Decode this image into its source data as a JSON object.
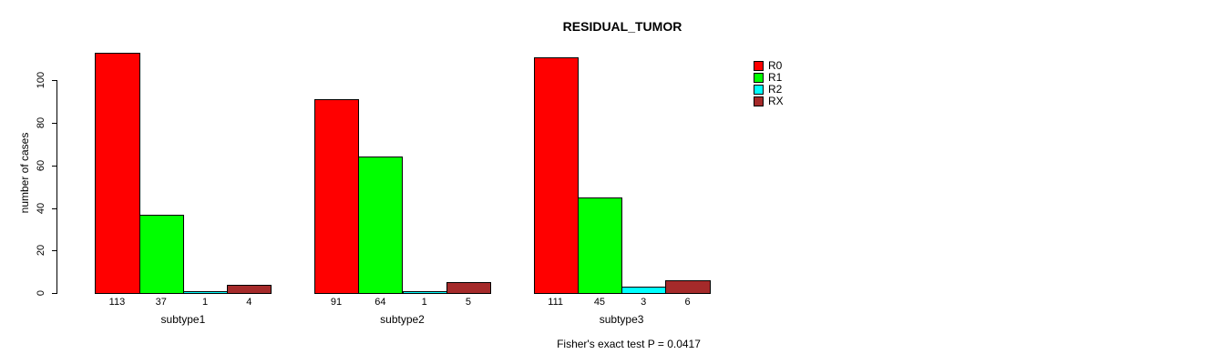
{
  "chart_data": {
    "type": "bar",
    "title": "RESIDUAL_TUMOR",
    "xlabel": "",
    "ylabel": "number of cases",
    "categories": [
      "subtype1",
      "subtype2",
      "subtype3"
    ],
    "series": [
      {
        "name": "R0",
        "color": "#FF0000",
        "values": [
          113,
          91,
          111
        ]
      },
      {
        "name": "R1",
        "color": "#00FF00",
        "values": [
          37,
          64,
          45
        ]
      },
      {
        "name": "R2",
        "color": "#00FFFF",
        "values": [
          1,
          1,
          3
        ]
      },
      {
        "name": "RX",
        "color": "#A52A2A",
        "values": [
          4,
          5,
          6
        ]
      }
    ],
    "bar_value_labels": [
      [
        "113",
        "37",
        "1",
        "4"
      ],
      [
        "91",
        "64",
        "1",
        "5"
      ],
      [
        "111",
        "45",
        "3",
        "6"
      ]
    ],
    "yticks": [
      0,
      20,
      40,
      60,
      80,
      100
    ],
    "ylim": [
      0,
      113
    ],
    "grid": false,
    "legend_position": "top-right",
    "annotation": "Fisher's exact test P = 0.0417"
  }
}
